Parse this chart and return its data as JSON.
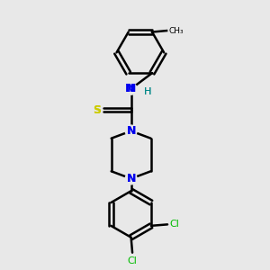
{
  "background_color": "#e8e8e8",
  "bond_color": "#000000",
  "bond_width": 1.8,
  "N_color": "#0000ee",
  "S_color": "#cccc00",
  "Cl_color": "#00bb00",
  "H_color": "#008888",
  "figsize": [
    3.0,
    3.0
  ],
  "dpi": 100,
  "xlim": [
    0,
    10
  ],
  "ylim": [
    0,
    10
  ]
}
